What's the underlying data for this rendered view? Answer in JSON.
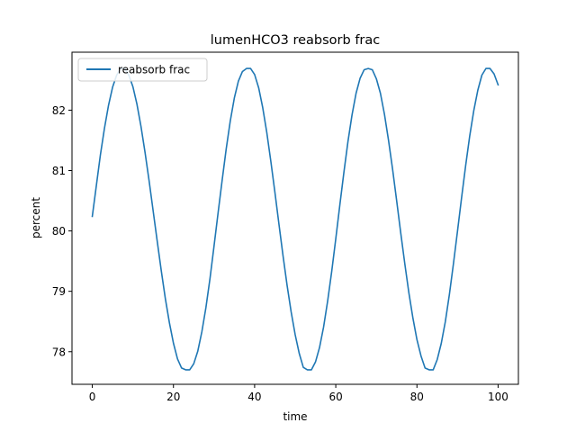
{
  "chart_data": {
    "type": "line",
    "title": "lumenHCO3 reabsorb frac",
    "xlabel": "time",
    "ylabel": "percent",
    "xlim": [
      -5,
      105
    ],
    "ylim": [
      77.46,
      82.96
    ],
    "x_ticks": [
      0,
      20,
      40,
      60,
      80,
      100
    ],
    "y_ticks": [
      78,
      79,
      80,
      81,
      82
    ],
    "grid": false,
    "legend": "top-left",
    "series": [
      {
        "name": "reabsorb frac",
        "color": "#1f77b4",
        "x": [
          0,
          1,
          2,
          3,
          4,
          5,
          6,
          7,
          8,
          9,
          10,
          11,
          12,
          13,
          14,
          15,
          16,
          17,
          18,
          19,
          20,
          21,
          22,
          23,
          24,
          25,
          26,
          27,
          28,
          29,
          30,
          31,
          32,
          33,
          34,
          35,
          36,
          37,
          38,
          39,
          40,
          41,
          42,
          43,
          44,
          45,
          46,
          47,
          48,
          49,
          50,
          51,
          52,
          53,
          54,
          55,
          56,
          57,
          58,
          59,
          60,
          61,
          62,
          63,
          64,
          65,
          66,
          67,
          68,
          69,
          70,
          71,
          72,
          73,
          74,
          75,
          76,
          77,
          78,
          79,
          80,
          81,
          82,
          83,
          84,
          85,
          86,
          87,
          88,
          89,
          90,
          91,
          92,
          93,
          94,
          95,
          96,
          97,
          98,
          99,
          100
        ],
        "y": [
          80.24,
          80.75,
          81.26,
          81.7,
          82.08,
          82.38,
          82.58,
          82.69,
          82.69,
          82.58,
          82.39,
          82.1,
          81.73,
          81.3,
          80.83,
          80.33,
          79.83,
          79.34,
          78.88,
          78.48,
          78.14,
          77.88,
          77.73,
          77.7,
          77.7,
          77.8,
          78.01,
          78.33,
          78.73,
          79.21,
          79.75,
          80.3,
          80.84,
          81.36,
          81.82,
          82.2,
          82.48,
          82.64,
          82.69,
          82.69,
          82.59,
          82.37,
          82.04,
          81.63,
          81.15,
          80.64,
          80.11,
          79.59,
          79.1,
          78.66,
          78.28,
          77.97,
          77.74,
          77.7,
          77.7,
          77.83,
          78.07,
          78.41,
          78.84,
          79.33,
          79.87,
          80.43,
          80.97,
          81.48,
          81.92,
          82.28,
          82.53,
          82.67,
          82.69,
          82.67,
          82.52,
          82.28,
          81.93,
          81.5,
          81.02,
          80.5,
          79.97,
          79.46,
          78.98,
          78.56,
          78.2,
          77.93,
          77.73,
          77.7,
          77.7,
          77.87,
          78.14,
          78.5,
          78.95,
          79.46,
          80.0,
          80.55,
          81.08,
          81.57,
          81.99,
          82.33,
          82.58,
          82.69,
          82.69,
          82.6,
          82.42
        ]
      }
    ]
  }
}
